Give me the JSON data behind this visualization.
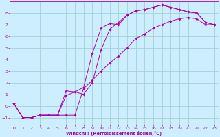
{
  "title": "",
  "xlabel": "Windchill (Refroidissement éolien,°C)",
  "ylabel": "",
  "bg_color": "#cceeff",
  "line_color": "#aa00aa",
  "grid_color": "#99cccc",
  "xlim": [
    -0.5,
    23.5
  ],
  "ylim": [
    -1.6,
    9.0
  ],
  "xticks": [
    0,
    1,
    2,
    3,
    4,
    5,
    6,
    7,
    8,
    9,
    10,
    11,
    12,
    13,
    14,
    15,
    16,
    17,
    18,
    19,
    20,
    21,
    22,
    23
  ],
  "yticks": [
    -1,
    0,
    1,
    2,
    3,
    4,
    5,
    6,
    7,
    8
  ],
  "line1_x": [
    0,
    1,
    2,
    3,
    4,
    5,
    6,
    7,
    8,
    9,
    10,
    11,
    12,
    13,
    14,
    15,
    16,
    17,
    18,
    19,
    20,
    21,
    22,
    23
  ],
  "line1_y": [
    0.2,
    -1.0,
    -1.0,
    -0.8,
    -0.8,
    -0.8,
    0.9,
    1.2,
    1.6,
    4.5,
    6.7,
    7.1,
    7.0,
    7.8,
    8.2,
    8.3,
    8.5,
    8.7,
    8.5,
    8.3,
    8.1,
    8.0,
    7.2,
    7.0
  ],
  "line2_x": [
    0,
    1,
    2,
    3,
    4,
    5,
    6,
    7,
    8,
    9,
    10,
    11,
    12,
    13,
    14,
    15,
    16,
    17,
    18,
    19,
    20,
    21,
    22,
    23
  ],
  "line2_y": [
    0.2,
    -1.0,
    -1.0,
    -0.8,
    -0.8,
    -0.8,
    1.3,
    1.2,
    1.0,
    2.0,
    4.8,
    6.6,
    7.2,
    7.8,
    8.2,
    8.3,
    8.5,
    8.7,
    8.5,
    8.3,
    8.1,
    8.0,
    7.2,
    7.0
  ],
  "line3_x": [
    0,
    1,
    2,
    3,
    4,
    5,
    6,
    7,
    8,
    9,
    10,
    11,
    12,
    13,
    14,
    15,
    16,
    17,
    18,
    19,
    20,
    21,
    22,
    23
  ],
  "line3_y": [
    0.2,
    -1.0,
    -1.0,
    -0.8,
    -0.8,
    -0.8,
    -0.8,
    -0.8,
    1.5,
    2.2,
    3.0,
    3.7,
    4.3,
    5.0,
    5.8,
    6.2,
    6.7,
    7.0,
    7.3,
    7.5,
    7.6,
    7.5,
    7.0,
    7.0
  ]
}
